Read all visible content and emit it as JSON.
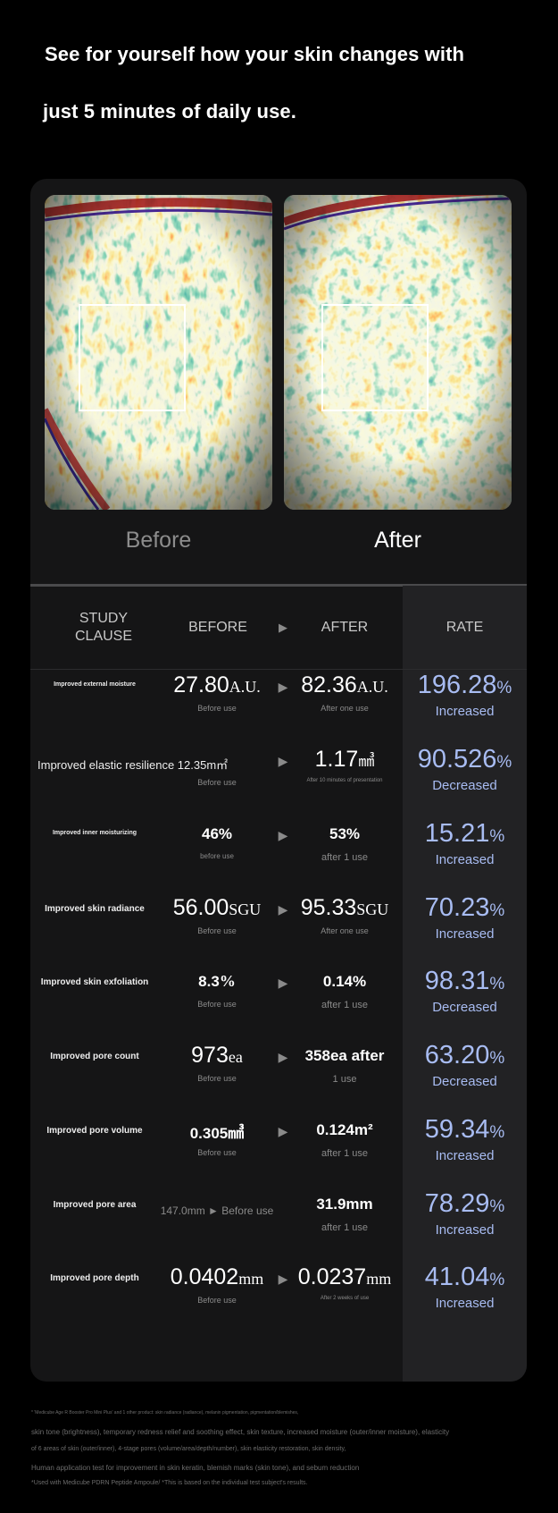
{
  "headline": {
    "line1": "See for yourself how your skin changes with",
    "line2": "just 5 minutes of daily use."
  },
  "comparison": {
    "before_label": "Before",
    "after_label": "After"
  },
  "table": {
    "headers": {
      "clause": "STUDY CLAUSE",
      "before": "BEFORE",
      "arrow": "▶",
      "after": "AFTER",
      "rate": "RATE"
    },
    "rows": [
      {
        "clause": "Improved external moisture",
        "before": "27.80",
        "before_unit": "A.U.",
        "before_note": "Before use",
        "after": "82.36",
        "after_unit": "A.U.",
        "after_note": "After one use",
        "rate": "196.28",
        "rate_dir": "Increased"
      },
      {
        "clause": "Improved elastic resilience 12.35m㎡",
        "before": "",
        "before_unit": "",
        "before_note": "Before use",
        "after": "1.17",
        "after_unit": "㎣",
        "after_note": "After 10 minutes of presentation",
        "rate": "90.526",
        "rate_dir": "Decreased"
      },
      {
        "clause": "Improved inner moisturizing",
        "before": "46%",
        "before_unit": "",
        "before_note": "before use",
        "after": "53%",
        "after_unit": "",
        "after_note": "after 1 use",
        "rate": "15.21",
        "rate_dir": "Increased"
      },
      {
        "clause": "Improved skin radiance",
        "before": "56.00",
        "before_unit": "SGU",
        "before_note": "Before use",
        "after": "95.33",
        "after_unit": "SGU",
        "after_note": "After one use",
        "rate": "70.23",
        "rate_dir": "Increased"
      },
      {
        "clause": "Improved skin exfoliation",
        "before": "8.3",
        "before_unit": "%",
        "before_note": "Before use",
        "after": "0.14%",
        "after_unit": "",
        "after_note": "after 1 use",
        "rate": "98.31",
        "rate_dir": "Decreased"
      },
      {
        "clause": "Improved pore count",
        "before": "973",
        "before_unit": "ea",
        "before_note": "Before use",
        "after": "358ea after",
        "after_unit": "",
        "after_note": "1 use",
        "rate": "63.20",
        "rate_dir": "Decreased"
      },
      {
        "clause": "Improved pore volume",
        "before": "0.305",
        "before_unit": "㎣",
        "before_note": "Before use",
        "after": "0.124m²",
        "after_unit": "",
        "after_note": "after 1 use",
        "rate": "59.34",
        "rate_dir": "Increased"
      },
      {
        "clause": "Improved pore area",
        "before": "147.0mm ► Before use",
        "before_unit": "",
        "before_note": "",
        "after": "31.9mm",
        "after_unit": "",
        "after_note": "after 1 use",
        "rate": "78.29",
        "rate_dir": "Increased"
      },
      {
        "clause": "Improved pore depth",
        "before": "0.0402",
        "before_unit": "mm",
        "before_note": "Before use",
        "after": "0.0237",
        "after_unit": "mm",
        "after_note": "After 2 weeks of use",
        "rate": "41.04",
        "rate_dir": "Increased"
      }
    ],
    "percent_sign": "%"
  },
  "footnotes": [
    "* 'Medicube Age R Booster Pro Mini Plus' and 1 other product: skin radiance (radiance), melanin pigmentation, pigmentation/blemishes,",
    "skin tone (brightness), temporary redness relief and soothing effect, skin texture, increased moisture (outer/inner moisture), elasticity",
    "of 6 areas of skin (outer/inner), 4-stage pores (volume/area/depth/number), skin elasticity restoration, skin density,",
    "Human application test for improvement in skin keratin, blemish marks (skin tone), and sebum reduction",
    "*Used with Medicube PDRN Peptide Ampoule/ *This is based on the individual test subject's results."
  ],
  "colors": {
    "background": "#000000",
    "card": "#151516",
    "rate_column": "#222224",
    "rate_text": "#a8bcf2"
  }
}
